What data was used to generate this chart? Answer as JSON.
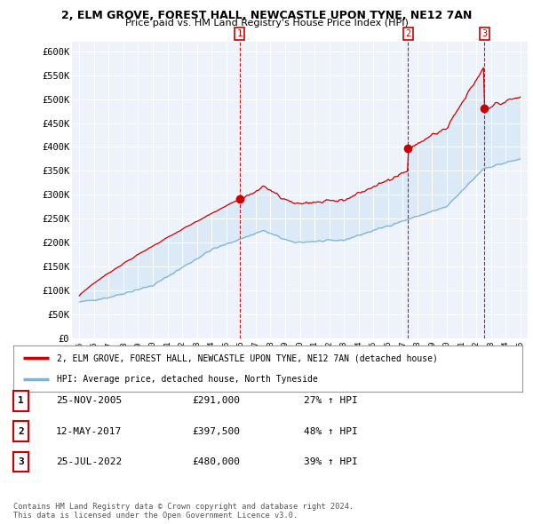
{
  "title": "2, ELM GROVE, FOREST HALL, NEWCASTLE UPON TYNE, NE12 7AN",
  "subtitle": "Price paid vs. HM Land Registry's House Price Index (HPI)",
  "property_color": "#cc0000",
  "hpi_color": "#7fb3d3",
  "fill_color": "#ddeeff",
  "sale_marker_color": "#cc0000",
  "background_color": "#ffffff",
  "chart_bg_color": "#f0f4ff",
  "grid_color": "#cccccc",
  "sales": [
    {
      "date_x": 2005.9,
      "price": 291000,
      "label": "1"
    },
    {
      "date_x": 2017.37,
      "price": 397500,
      "label": "2"
    },
    {
      "date_x": 2022.56,
      "price": 480000,
      "label": "3"
    }
  ],
  "legend_property_label": "2, ELM GROVE, FOREST HALL, NEWCASTLE UPON TYNE, NE12 7AN (detached house)",
  "legend_hpi_label": "HPI: Average price, detached house, North Tyneside",
  "table_rows": [
    {
      "num": "1",
      "date": "25-NOV-2005",
      "price": "£291,000",
      "change": "27% ↑ HPI"
    },
    {
      "num": "2",
      "date": "12-MAY-2017",
      "price": "£397,500",
      "change": "48% ↑ HPI"
    },
    {
      "num": "3",
      "date": "25-JUL-2022",
      "price": "£480,000",
      "change": "39% ↑ HPI"
    }
  ],
  "footer": "Contains HM Land Registry data © Crown copyright and database right 2024.\nThis data is licensed under the Open Government Licence v3.0.",
  "ylim": [
    0,
    620000
  ],
  "yticks": [
    0,
    50000,
    100000,
    150000,
    200000,
    250000,
    300000,
    350000,
    400000,
    450000,
    500000,
    550000,
    600000
  ],
  "ytick_labels": [
    "£0",
    "£50K",
    "£100K",
    "£150K",
    "£200K",
    "£250K",
    "£300K",
    "£350K",
    "£400K",
    "£450K",
    "£500K",
    "£550K",
    "£600K"
  ],
  "xlim": [
    1994.5,
    2025.5
  ],
  "xticks": [
    1995,
    1996,
    1997,
    1998,
    1999,
    2000,
    2001,
    2002,
    2003,
    2004,
    2005,
    2006,
    2007,
    2008,
    2009,
    2010,
    2011,
    2012,
    2013,
    2014,
    2015,
    2016,
    2017,
    2018,
    2019,
    2020,
    2021,
    2022,
    2023,
    2024,
    2025
  ]
}
